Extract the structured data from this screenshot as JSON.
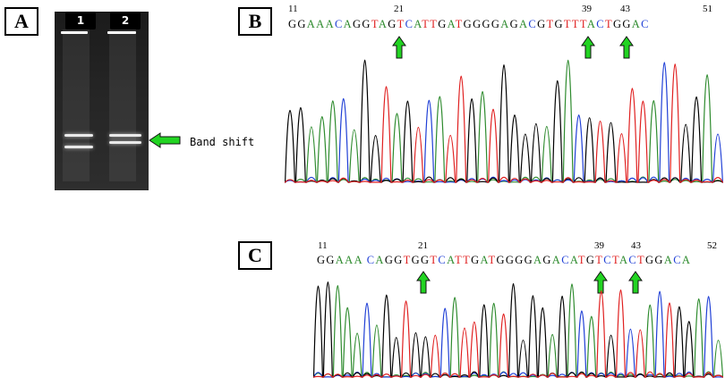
{
  "panels": {
    "a": {
      "label": "A"
    },
    "b": {
      "label": "B"
    },
    "c": {
      "label": "C"
    }
  },
  "gel": {
    "lanes": [
      "1",
      "2"
    ],
    "annotation": "Band shift"
  },
  "trace_b": {
    "positions": [
      "11",
      "21",
      "39",
      "43",
      "51"
    ],
    "sequence": "GGAAACAGGTAGTCATTGATGGGGAGACGTGTTTACTGGAC"
  },
  "trace_c": {
    "positions": [
      "11",
      "21",
      "39",
      "43",
      "52"
    ],
    "sequence": "GGAAA CAGGTGGTCATTGATGGGGAGACATGTCTACTGGACA"
  },
  "colors": {
    "A": "#2e8b2e",
    "C": "#1f3fd6",
    "G": "#000000",
    "T": "#e02020",
    "arrow": "#22d422"
  }
}
